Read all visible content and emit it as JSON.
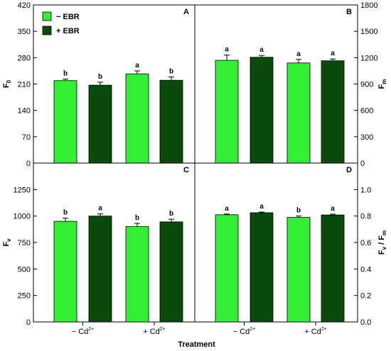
{
  "legend": [
    {
      "label": "− EBR",
      "color": "#33ee33"
    },
    {
      "label": "+ EBR",
      "color": "#0a4a0a"
    }
  ],
  "xlabel": "Treatment",
  "group_labels": [
    "− Cd",
    "+ Cd"
  ],
  "group_sup": "2+",
  "chart_data": [
    {
      "type": "bar",
      "panel": "A",
      "axis_side": "left",
      "ylabel": "F",
      "ylabel_sub": "0",
      "ylim": [
        0,
        420
      ],
      "yticks": [
        0,
        70,
        140,
        210,
        280,
        350,
        420
      ],
      "categories": [
        "− Cd2+",
        "+ Cd2+"
      ],
      "series": [
        {
          "name": "− EBR",
          "values": [
            219,
            237
          ],
          "errors": [
            4,
            8
          ],
          "letters": [
            "b",
            "a"
          ]
        },
        {
          "name": "+ EBR",
          "values": [
            207,
            220
          ],
          "errors": [
            8,
            9
          ],
          "letters": [
            "b",
            "b"
          ]
        }
      ]
    },
    {
      "type": "bar",
      "panel": "B",
      "axis_side": "right",
      "ylabel": "F",
      "ylabel_sub": "m",
      "ylim": [
        0,
        1800
      ],
      "yticks": [
        0,
        300,
        600,
        900,
        1200,
        1500,
        1800
      ],
      "categories": [
        "− Cd2+",
        "+ Cd2+"
      ],
      "series": [
        {
          "name": "− EBR",
          "values": [
            1170,
            1140
          ],
          "errors": [
            60,
            40
          ],
          "letters": [
            "a",
            "a"
          ]
        },
        {
          "name": "+ EBR",
          "values": [
            1205,
            1165
          ],
          "errors": [
            20,
            20
          ],
          "letters": [
            "a",
            "a"
          ]
        }
      ]
    },
    {
      "type": "bar",
      "panel": "C",
      "axis_side": "left",
      "ylabel": "F",
      "ylabel_sub": "v",
      "ylim": [
        0,
        1500
      ],
      "yticks": [
        0,
        250,
        500,
        750,
        1000,
        1250,
        1500
      ],
      "categories": [
        "− Cd2+",
        "+ Cd2+"
      ],
      "series": [
        {
          "name": "− EBR",
          "values": [
            950,
            900
          ],
          "errors": [
            30,
            30
          ],
          "letters": [
            "b",
            "b"
          ]
        },
        {
          "name": "+ EBR",
          "values": [
            1000,
            945
          ],
          "errors": [
            20,
            25
          ],
          "letters": [
            "a",
            "b"
          ]
        }
      ]
    },
    {
      "type": "bar",
      "panel": "D",
      "axis_side": "right",
      "ylabel": "F",
      "ylabel_sub": "v",
      "ylabel_mid": " / F",
      "ylabel_sub2": "m",
      "ylim": [
        0,
        1.2
      ],
      "yticks": [
        "0.0",
        "0.2",
        "0.4",
        "0.6",
        "0.8",
        "1.0",
        "1.2"
      ],
      "categories": [
        "− Cd2+",
        "+ Cd2+"
      ],
      "series": [
        {
          "name": "− EBR",
          "values": [
            0.81,
            0.79
          ],
          "errors": [
            0.005,
            0.01
          ],
          "letters": [
            "a",
            "b"
          ]
        },
        {
          "name": "+ EBR",
          "values": [
            0.825,
            0.808
          ],
          "errors": [
            0.005,
            0.006
          ],
          "letters": [
            "a",
            "a"
          ]
        }
      ]
    }
  ]
}
